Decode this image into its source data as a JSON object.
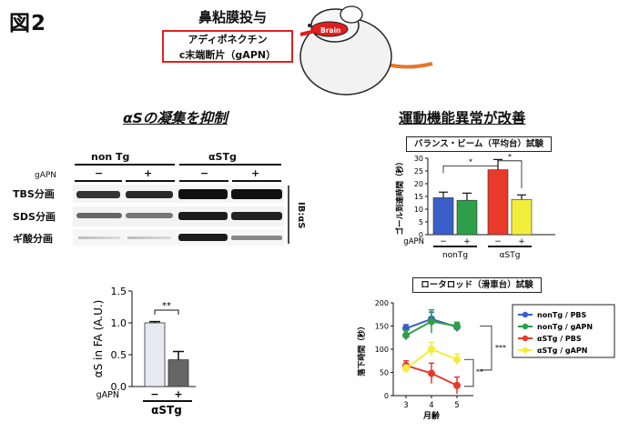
{
  "figure_label": "図2",
  "treatment": {
    "title": "鼻粘膜投与",
    "protein_line1": "アディポネクチン",
    "protein_line2": "c末端断片（gAPN）",
    "brain_label": "Brain"
  },
  "left_title": "αSの凝集を抑制",
  "right_title": "運動機能異常が改善",
  "western_blot": {
    "groups": [
      "non Tg",
      "αSTg"
    ],
    "gapn_label": "gAPN",
    "signs": [
      "−",
      "+",
      "−",
      "+"
    ],
    "fractions": [
      "TBS分画",
      "SDS分画",
      "ギ酸分画"
    ],
    "antibody": "IB:αS"
  },
  "chart_data": [
    {
      "type": "bar",
      "ylabel": "αS in FA (A.U.)",
      "xlabel": "αSTg",
      "gapn_label": "gAPN",
      "categories": [
        "−",
        "+"
      ],
      "values": [
        1.0,
        0.42
      ],
      "errors": [
        0.02,
        0.13
      ],
      "ylim": [
        0,
        1.5
      ],
      "yticks": [
        "0.0",
        "0.5",
        "1.0",
        "1.5"
      ],
      "significance": "**",
      "colors": [
        "#e9e9f3",
        "#666666"
      ]
    },
    {
      "type": "bar",
      "title": "バランス・ビーム（平均台）試験",
      "ylabel": "ゴール到達時間（秒）",
      "gapn_label": "gAPN",
      "categories": [
        "−",
        "+",
        "−",
        "+"
      ],
      "groups": [
        "nonTg",
        "αSTg"
      ],
      "values": [
        14.5,
        13.5,
        25.5,
        13.8
      ],
      "errors": [
        2.2,
        2.8,
        4.0,
        1.8
      ],
      "ylim": [
        0,
        30
      ],
      "yticks": [
        "0",
        "5",
        "10",
        "15",
        "20",
        "25",
        "30"
      ],
      "significance": [
        "*",
        "*"
      ],
      "colors": [
        "#3a5fc8",
        "#2e9e4a",
        "#e8392a",
        "#f2ee3c"
      ]
    },
    {
      "type": "line",
      "title": "ロータロッド（滑車台）試験",
      "ylabel": "落下時間（秒）",
      "xlabel": "月齢",
      "x": [
        3,
        4,
        5
      ],
      "xticks": [
        "3",
        "4",
        "5"
      ],
      "ylim": [
        0,
        200
      ],
      "yticks": [
        "0",
        "50",
        "100",
        "150",
        "200"
      ],
      "series": [
        {
          "name": "nonTg / PBS",
          "values": [
            145,
            165,
            148
          ],
          "errors": [
            8,
            15,
            10
          ],
          "color": "#3a5fc8"
        },
        {
          "name": "nonTg / gAPN",
          "values": [
            130,
            160,
            150
          ],
          "errors": [
            10,
            25,
            8
          ],
          "color": "#2e9e4a"
        },
        {
          "name": "αSTg / PBS",
          "values": [
            65,
            48,
            22
          ],
          "errors": [
            10,
            22,
            18
          ],
          "color": "#e8392a"
        },
        {
          "name": "αSTg / gAPN",
          "values": [
            58,
            100,
            78
          ],
          "errors": [
            8,
            15,
            12
          ],
          "color": "#f2ee3c"
        }
      ],
      "significance": [
        "***",
        "**"
      ]
    }
  ]
}
